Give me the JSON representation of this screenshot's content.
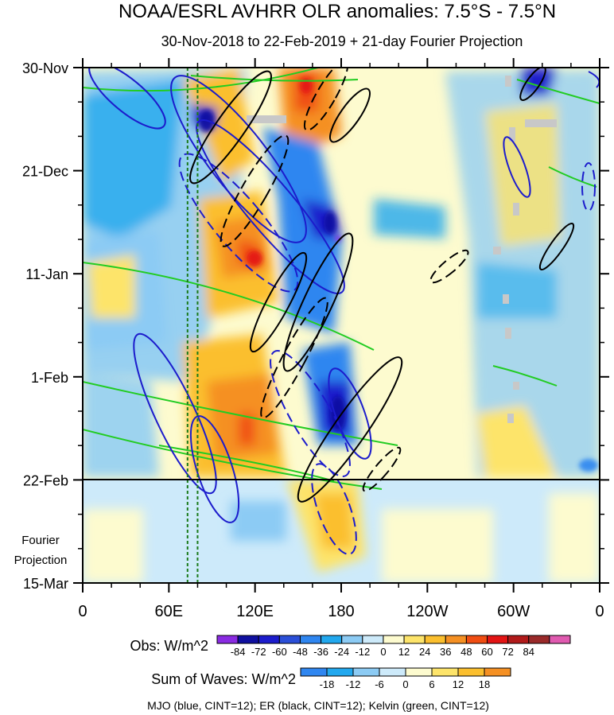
{
  "chart_data": {
    "type": "heatmap",
    "title": "NOAA/ESRL AVHRR OLR anomalies: 7.5°S - 7.5°N",
    "subtitle": "30-Nov-2018 to 22-Feb-2019 + 21-day Fourier Projection",
    "x_ticks": [
      "0",
      "60E",
      "120E",
      "180",
      "120W",
      "60W",
      "0"
    ],
    "x_range_deg_east": [
      0,
      360
    ],
    "y_ticks": [
      "30-Nov",
      "21-Dec",
      "11-Jan",
      "1-Feb",
      "22-Feb",
      "15-Mar"
    ],
    "y_tick_days": [
      0,
      21,
      42,
      63,
      84,
      105
    ],
    "projection_label": [
      "Fourier",
      "Projection"
    ],
    "projection_start_day": 84,
    "reference_lines_lon_deg": [
      73,
      80
    ],
    "obs_colorbar": {
      "label": "Obs: W/m^2",
      "levels": [
        "-84",
        "-72",
        "-60",
        "-48",
        "-36",
        "-24",
        "-12",
        "0",
        "12",
        "24",
        "36",
        "48",
        "60",
        "72",
        "84"
      ],
      "colors": [
        "#8a2be2",
        "#1010a0",
        "#1c1ccc",
        "#2b4fd8",
        "#2f86f0",
        "#22a8ee",
        "#8ccbf4",
        "#cdeafa",
        "#fdfbcf",
        "#fde46a",
        "#fbbf2e",
        "#f59023",
        "#f04d12",
        "#e31414",
        "#b11a1a",
        "#9a2a2a",
        "#e05ab0"
      ]
    },
    "waves_colorbar": {
      "label": "Sum of Waves: W/m^2",
      "levels": [
        "-18",
        "-12",
        "-6",
        "0",
        "6",
        "12",
        "18"
      ],
      "colors": [
        "#2f86f0",
        "#22a8ee",
        "#8ccbf4",
        "#cdeafa",
        "#fdfbcf",
        "#fde46a",
        "#fbbf2e",
        "#f59023"
      ]
    },
    "contours": {
      "mjo": {
        "name": "MJO",
        "color": "#1c1ccc",
        "cint": 12
      },
      "er": {
        "name": "ER",
        "color": "#000000",
        "cint": 12
      },
      "kelvin": {
        "name": "Kelvin",
        "color": "#22cc22",
        "cint": 12
      }
    },
    "footer": "MJO (blue, CINT=12); ER (black, CINT=12); Kelvin (green, CINT=12)"
  }
}
